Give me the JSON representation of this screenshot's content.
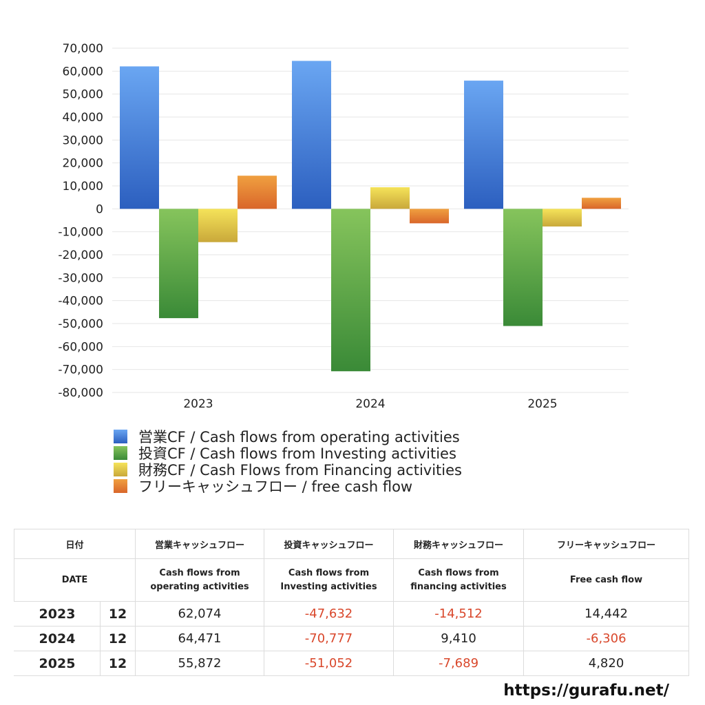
{
  "chart_data": {
    "type": "bar",
    "categories": [
      "2023",
      "2024",
      "2025"
    ],
    "series": [
      {
        "name": "営業CF / Cash flows from operating activities",
        "values": [
          62074,
          64471,
          55872
        ],
        "color_top": "#6aa6f2",
        "color_bottom": "#2c5fbf"
      },
      {
        "name": "投資CF / Cash flows from Investing activities",
        "values": [
          -47632,
          -70777,
          -51052
        ],
        "color_top": "#86c45c",
        "color_bottom": "#3a8a37"
      },
      {
        "name": "財務CF / Cash Flows from Financing activities",
        "values": [
          -14512,
          9410,
          -7689
        ],
        "color_top": "#f5e35a",
        "color_bottom": "#c9a83a"
      },
      {
        "name": "フリーキャッシュフロー / free cash flow",
        "values": [
          14442,
          -6306,
          4820
        ],
        "color_top": "#f0a040",
        "color_bottom": "#d9662a"
      }
    ],
    "ylim": [
      -80000,
      70000
    ],
    "yticks": [
      "70,000",
      "60,000",
      "50,000",
      "40,000",
      "30,000",
      "20,000",
      "10,000",
      "0",
      "-10,000",
      "-20,000",
      "-30,000",
      "-40,000",
      "-50,000",
      "-60,000",
      "-70,000",
      "-80,000"
    ],
    "grid": true,
    "legend_position": "bottom"
  },
  "table": {
    "header1": {
      "date": "日付",
      "operating": "営業キャッシュフロー",
      "investing": "投資キャッシュフロー",
      "financing": "財務キャッシュフロー",
      "free": "フリーキャッシュフロー"
    },
    "header2": {
      "date": "DATE",
      "operating_l1": "Cash flows from",
      "operating_l2": "operating activities",
      "investing_l1": "Cash flows from",
      "investing_l2": "Investing activities",
      "financing_l1": "Cash flows from",
      "financing_l2": "financing activities",
      "free": "Free cash flow"
    },
    "rows": [
      {
        "year": "2023",
        "month": "12",
        "operating": "62,074",
        "investing": "-47,632",
        "financing": "-14,512",
        "free": "14,442"
      },
      {
        "year": "2024",
        "month": "12",
        "operating": "64,471",
        "investing": "-70,777",
        "financing": "9,410",
        "free": "-6,306"
      },
      {
        "year": "2025",
        "month": "12",
        "operating": "55,872",
        "investing": "-51,052",
        "financing": "-7,689",
        "free": "4,820"
      }
    ]
  },
  "footer": {
    "url": "https://gurafu.net/"
  },
  "colors": {
    "negative": "#d9472b",
    "grid": "#e6e6e6"
  }
}
